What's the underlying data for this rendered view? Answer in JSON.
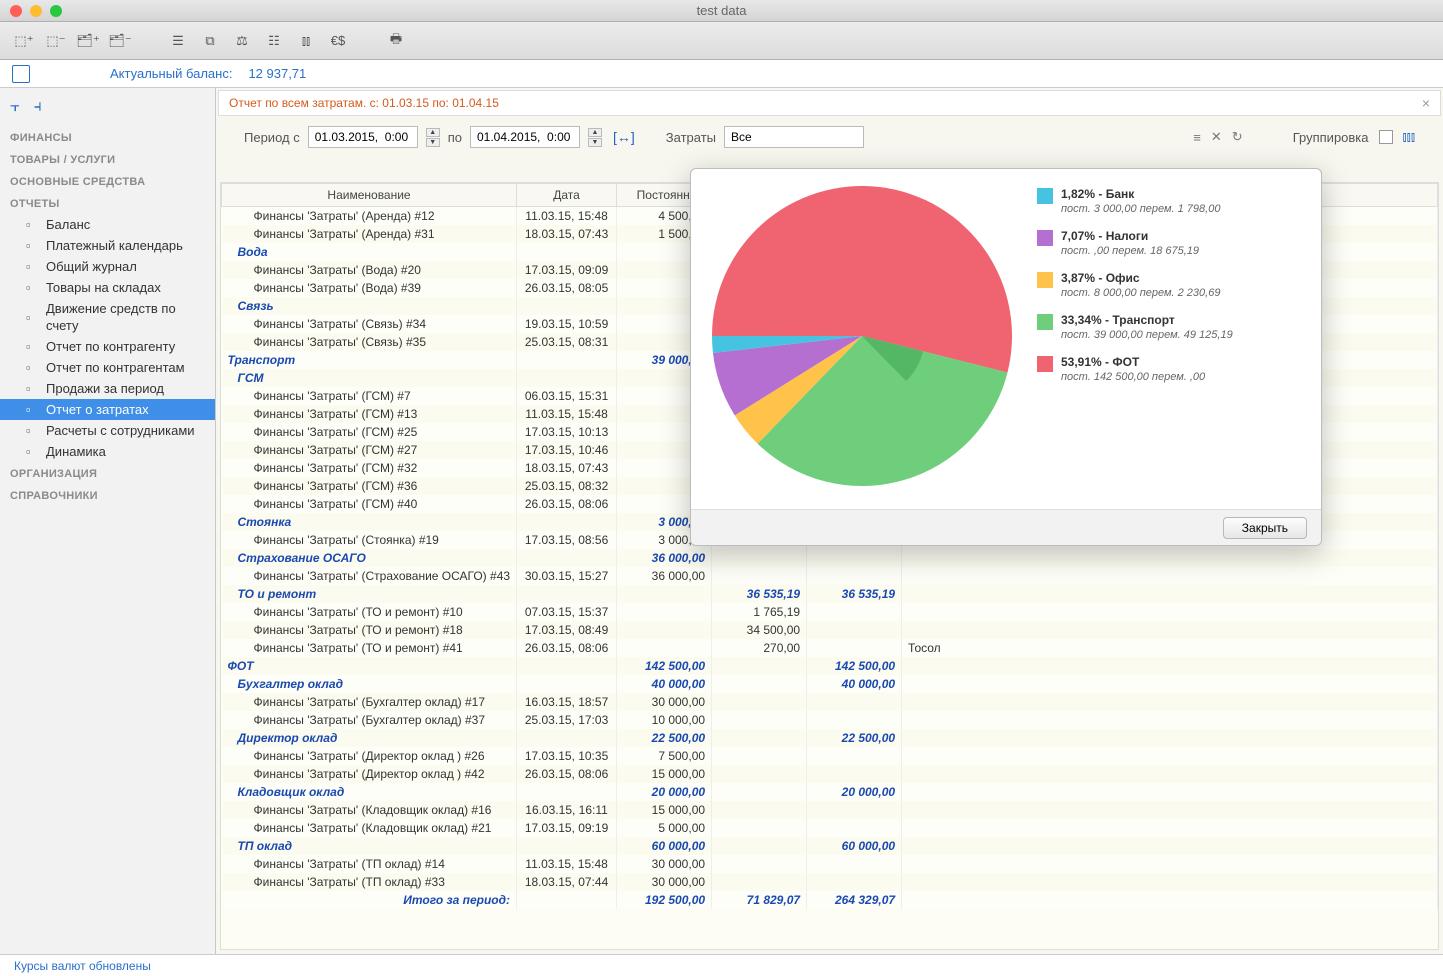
{
  "window": {
    "title": "test data"
  },
  "balance": {
    "label": "Актуальный баланс:",
    "value": "12 937,71"
  },
  "sidebar": {
    "groups": [
      {
        "title": "ФИНАНСЫ",
        "items": []
      },
      {
        "title": "ТОВАРЫ / УСЛУГИ",
        "items": []
      },
      {
        "title": "ОСНОВНЫЕ СРЕДСТВА",
        "items": []
      },
      {
        "title": "ОТЧЕТЫ",
        "items": [
          "Баланс",
          "Платежный календарь",
          "Общий журнал",
          "Товары на складах",
          "Движение средств по счету",
          "Отчет по контрагенту",
          "Отчет по контрагентам",
          "Продажи за период",
          "Отчет о затратах",
          "Расчеты с сотрудниками",
          "Динамика"
        ],
        "selected": 8
      },
      {
        "title": "ОРГАНИЗАЦИЯ",
        "items": []
      },
      {
        "title": "СПРАВОЧНИКИ",
        "items": []
      }
    ]
  },
  "report": {
    "title": "Отчет по всем затратам. с: 01.03.15 по: 01.04.15",
    "period_from_label": "Период с",
    "period_from": "01.03.2015,  0:00",
    "period_to_label": "по",
    "period_to": "01.04.2015,  0:00",
    "costs_label": "Затраты",
    "costs_value": "Все",
    "group_label": "Группировка",
    "columns": {
      "name": "Наименование",
      "date": "Дата",
      "const": "Постоянные"
    },
    "rows": [
      {
        "t": "leaf",
        "name": "Финансы 'Затраты' (Аренда) #12",
        "date": "11.03.15, 15:48",
        "c": "4 500,00"
      },
      {
        "t": "leaf",
        "name": "Финансы 'Затраты' (Аренда) #31",
        "date": "18.03.15, 07:43",
        "c": "1 500,00"
      },
      {
        "t": "sub",
        "name": "Вода"
      },
      {
        "t": "leaf",
        "name": "Финансы 'Затраты' (Вода) #20",
        "date": "17.03.15, 09:09"
      },
      {
        "t": "leaf",
        "name": "Финансы 'Затраты' (Вода) #39",
        "date": "26.03.15, 08:05"
      },
      {
        "t": "sub",
        "name": "Связь"
      },
      {
        "t": "leaf",
        "name": "Финансы 'Затраты' (Связь) #34",
        "date": "19.03.15, 10:59"
      },
      {
        "t": "leaf",
        "name": "Финансы 'Затраты' (Связь) #35",
        "date": "25.03.15, 08:31"
      },
      {
        "t": "grp",
        "name": "Транспорт",
        "c": "39 000,00"
      },
      {
        "t": "sub",
        "name": "ГСМ"
      },
      {
        "t": "leaf",
        "name": "Финансы 'Затраты' (ГСМ) #7",
        "date": "06.03.15, 15:31"
      },
      {
        "t": "leaf",
        "name": "Финансы 'Затраты' (ГСМ) #13",
        "date": "11.03.15, 15:48"
      },
      {
        "t": "leaf",
        "name": "Финансы 'Затраты' (ГСМ) #25",
        "date": "17.03.15, 10:13"
      },
      {
        "t": "leaf",
        "name": "Финансы 'Затраты' (ГСМ) #27",
        "date": "17.03.15, 10:46"
      },
      {
        "t": "leaf",
        "name": "Финансы 'Затраты' (ГСМ) #32",
        "date": "18.03.15, 07:43"
      },
      {
        "t": "leaf",
        "name": "Финансы 'Затраты' (ГСМ) #36",
        "date": "25.03.15, 08:32"
      },
      {
        "t": "leaf",
        "name": "Финансы 'Затраты' (ГСМ) #40",
        "date": "26.03.15, 08:06"
      },
      {
        "t": "sub",
        "name": "Стоянка",
        "c": "3 000,00"
      },
      {
        "t": "leaf",
        "name": "Финансы 'Затраты' (Стоянка) #19",
        "date": "17.03.15, 08:56",
        "c": "3 000,00"
      },
      {
        "t": "sub",
        "name": "Страхование ОСАГО",
        "c": "36 000,00"
      },
      {
        "t": "leaf",
        "name": "Финансы 'Затраты' (Страхование ОСАГО) #43",
        "date": "30.03.15, 15:27",
        "c": "36 000,00"
      },
      {
        "t": "sub",
        "name": "ТО и ремонт",
        "v": "36 535,19",
        "s": "36 535,19"
      },
      {
        "t": "leaf",
        "name": "Финансы 'Затраты' (ТО и ремонт) #10",
        "date": "07.03.15, 15:37",
        "v": "1 765,19"
      },
      {
        "t": "leaf",
        "name": "Финансы 'Затраты' (ТО и ремонт) #18",
        "date": "17.03.15, 08:49",
        "v": "34 500,00"
      },
      {
        "t": "leaf",
        "name": "Финансы 'Затраты' (ТО и ремонт) #41",
        "date": "26.03.15, 08:06",
        "v": "270,00",
        "comment": "Тосол"
      },
      {
        "t": "grp",
        "name": "ФОТ",
        "c": "142 500,00",
        "s": "142 500,00"
      },
      {
        "t": "sub",
        "name": "Бухгалтер оклад",
        "c": "40 000,00",
        "s": "40 000,00"
      },
      {
        "t": "leaf",
        "name": "Финансы 'Затраты' (Бухгалтер оклад) #17",
        "date": "16.03.15, 18:57",
        "c": "30 000,00"
      },
      {
        "t": "leaf",
        "name": "Финансы 'Затраты' (Бухгалтер оклад) #37",
        "date": "25.03.15, 17:03",
        "c": "10 000,00"
      },
      {
        "t": "sub",
        "name": "Директор оклад",
        "c": "22 500,00",
        "s": "22 500,00"
      },
      {
        "t": "leaf",
        "name": "Финансы 'Затраты' (Директор оклад ) #26",
        "date": "17.03.15, 10:35",
        "c": "7 500,00"
      },
      {
        "t": "leaf",
        "name": "Финансы 'Затраты' (Директор оклад ) #42",
        "date": "26.03.15, 08:06",
        "c": "15 000,00"
      },
      {
        "t": "sub",
        "name": "Кладовщик оклад",
        "c": "20 000,00",
        "s": "20 000,00"
      },
      {
        "t": "leaf",
        "name": "Финансы 'Затраты' (Кладовщик оклад) #16",
        "date": "16.03.15, 16:11",
        "c": "15 000,00"
      },
      {
        "t": "leaf",
        "name": "Финансы 'Затраты' (Кладовщик оклад) #21",
        "date": "17.03.15, 09:19",
        "c": "5 000,00"
      },
      {
        "t": "sub",
        "name": "ТП оклад",
        "c": "60 000,00",
        "s": "60 000,00"
      },
      {
        "t": "leaf",
        "name": "Финансы 'Затраты' (ТП оклад) #14",
        "date": "11.03.15, 15:48",
        "c": "30 000,00"
      },
      {
        "t": "leaf",
        "name": "Финансы 'Затраты' (ТП оклад) #33",
        "date": "18.03.15, 07:44",
        "c": "30 000,00"
      }
    ],
    "total": {
      "label": "Итого за период:",
      "c": "192 500,00",
      "v": "71 829,07",
      "s": "264 329,07"
    }
  },
  "chart": {
    "type": "pie",
    "background": "#ffffff",
    "close_label": "Закрыть",
    "slices": [
      {
        "label": "Банк",
        "percent": 1.82,
        "color": "#46c3e0",
        "detail": "пост. 3 000,00  перем. 1 798,00"
      },
      {
        "label": "Налоги",
        "percent": 7.07,
        "color": "#b46fd1",
        "detail": "пост. ,00  перем. 18 675,19"
      },
      {
        "label": "Офис",
        "percent": 3.87,
        "color": "#ffc24a",
        "detail": "пост. 8 000,00  перем. 2 230,69"
      },
      {
        "label": "Транспорт",
        "percent": 33.34,
        "color": "#6fce7c",
        "detail": "пост. 39 000,00  перем. 49 125,19"
      },
      {
        "label": "ФОТ",
        "percent": 53.91,
        "color": "#ef6470",
        "detail": "пост. 142 500,00  перем. ,00"
      }
    ],
    "inner_ratio": 0.42
  },
  "status": {
    "text": "Курсы валют обновлены"
  }
}
